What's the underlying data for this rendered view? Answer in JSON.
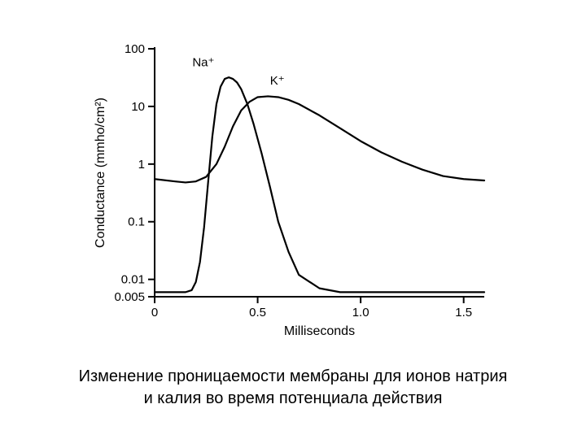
{
  "chart": {
    "type": "line",
    "background_color": "#ffffff",
    "axis_color": "#000000",
    "line_color": "#000000",
    "line_width": 2.2,
    "axis_width": 2,
    "tick_length": 8,
    "x": {
      "label": "Milliseconds",
      "min": 0,
      "max": 1.6,
      "ticks": [
        0,
        0.5,
        1.0,
        1.5
      ],
      "tick_labels": [
        "0",
        "0.5",
        "1.0",
        "1.5"
      ],
      "label_fontsize": 16,
      "tick_fontsize": 15
    },
    "y": {
      "label": "Conductance (mmho/cm²)",
      "scale": "log",
      "min": 0.005,
      "max": 100,
      "ticks": [
        0.005,
        0.01,
        0.1,
        1,
        10,
        100
      ],
      "tick_labels": [
        "0.005",
        "0.01",
        "0.1",
        "1",
        "10",
        "100"
      ],
      "label_fontsize": 16,
      "tick_fontsize": 15
    },
    "series": {
      "na": {
        "label": "Na⁺",
        "label_pos": {
          "x": 0.29,
          "y": 50
        },
        "label_fontsize": 15,
        "points": [
          [
            0.0,
            0.006
          ],
          [
            0.1,
            0.006
          ],
          [
            0.15,
            0.006
          ],
          [
            0.18,
            0.0065
          ],
          [
            0.2,
            0.009
          ],
          [
            0.22,
            0.02
          ],
          [
            0.24,
            0.08
          ],
          [
            0.26,
            0.5
          ],
          [
            0.28,
            3
          ],
          [
            0.3,
            11
          ],
          [
            0.32,
            22
          ],
          [
            0.34,
            30
          ],
          [
            0.36,
            32
          ],
          [
            0.38,
            30
          ],
          [
            0.4,
            26
          ],
          [
            0.42,
            20
          ],
          [
            0.45,
            11
          ],
          [
            0.48,
            5
          ],
          [
            0.52,
            1.5
          ],
          [
            0.56,
            0.4
          ],
          [
            0.6,
            0.1
          ],
          [
            0.65,
            0.03
          ],
          [
            0.7,
            0.012
          ],
          [
            0.8,
            0.007
          ],
          [
            0.9,
            0.006
          ],
          [
            1.0,
            0.006
          ],
          [
            1.2,
            0.006
          ],
          [
            1.4,
            0.006
          ],
          [
            1.6,
            0.006
          ]
        ]
      },
      "k": {
        "label": "K⁺",
        "label_pos": {
          "x": 0.56,
          "y": 24
        },
        "label_fontsize": 15,
        "points": [
          [
            0.0,
            0.55
          ],
          [
            0.1,
            0.5
          ],
          [
            0.15,
            0.48
          ],
          [
            0.2,
            0.5
          ],
          [
            0.25,
            0.6
          ],
          [
            0.3,
            1.0
          ],
          [
            0.34,
            2.0
          ],
          [
            0.38,
            4.5
          ],
          [
            0.42,
            8.5
          ],
          [
            0.46,
            12
          ],
          [
            0.5,
            14.5
          ],
          [
            0.55,
            15
          ],
          [
            0.6,
            14.5
          ],
          [
            0.65,
            13
          ],
          [
            0.7,
            11
          ],
          [
            0.8,
            7.0
          ],
          [
            0.9,
            4.2
          ],
          [
            1.0,
            2.5
          ],
          [
            1.1,
            1.6
          ],
          [
            1.2,
            1.1
          ],
          [
            1.3,
            0.8
          ],
          [
            1.4,
            0.62
          ],
          [
            1.5,
            0.55
          ],
          [
            1.6,
            0.52
          ]
        ]
      }
    }
  },
  "caption": {
    "line1": "Изменение проницаемости мембраны для ионов натрия",
    "line2": "и калия во время потенциала действия",
    "fontsize": 20,
    "color": "#000000"
  }
}
